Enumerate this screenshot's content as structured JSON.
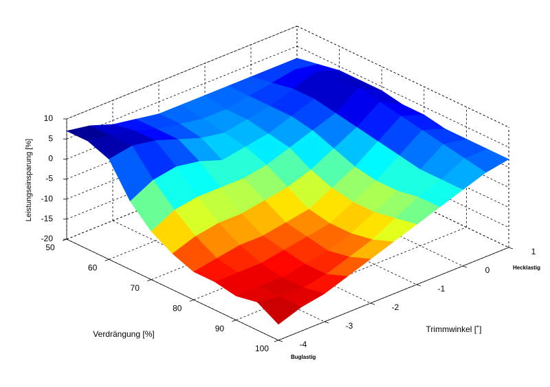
{
  "chart_data": {
    "type": "surface",
    "xlabel": "Verdrängung [%]",
    "ylabel": "Trimmwinkel [˚]",
    "zlabel": "Leistungseinsparung [%]",
    "annotations": [
      "Hecklastig",
      "Buglastig"
    ],
    "x": [
      50,
      55,
      60,
      65,
      70,
      75,
      80,
      85,
      90,
      95,
      100
    ],
    "y": [
      -4,
      -3.5,
      -3,
      -2.5,
      -2,
      -1.5,
      -1,
      -0.5,
      0,
      0.5,
      1
    ],
    "z": [
      [
        7,
        6,
        4,
        3,
        2,
        2,
        2,
        2,
        2,
        2,
        2
      ],
      [
        7,
        6,
        5,
        3,
        2,
        1,
        1,
        2,
        3,
        4,
        3
      ],
      [
        5,
        6,
        5,
        3,
        1,
        0,
        1,
        2,
        4,
        6,
        4
      ],
      [
        -3,
        0,
        1,
        0,
        -2,
        -1,
        0,
        2,
        4,
        7,
        4
      ],
      [
        -8,
        -5,
        -4,
        -4,
        -4,
        -3,
        -1,
        1,
        3,
        7,
        4
      ],
      [
        -11,
        -9,
        -8,
        -8,
        -7,
        -6,
        -4,
        -1,
        2,
        6,
        3
      ],
      [
        -13,
        -12,
        -11,
        -11,
        -10,
        -9,
        -6,
        -3,
        1,
        5,
        3
      ],
      [
        -13,
        -13,
        -13,
        -12,
        -11,
        -10,
        -7,
        -4,
        0,
        4,
        2
      ],
      [
        -14,
        -14,
        -14,
        -13,
        -12,
        -10,
        -7,
        -4,
        -1,
        3,
        2
      ],
      [
        -13,
        -14,
        -14,
        -13,
        -11,
        -9,
        -6,
        -3,
        -1,
        2,
        2
      ],
      [
        -16,
        -14,
        -13,
        -11,
        -9,
        -7,
        -5,
        -3,
        -1,
        1,
        2
      ]
    ],
    "xlim": [
      50,
      100
    ],
    "ylim": [
      -4,
      1
    ],
    "zlim": [
      -20,
      10
    ],
    "xticks": [
      50,
      60,
      70,
      80,
      90,
      100
    ],
    "yticks": [
      -4,
      -3,
      -2,
      -1,
      0,
      1
    ],
    "zticks": [
      -20,
      -15,
      -10,
      -5,
      0,
      5,
      10
    ],
    "grid": true,
    "colormap": "jet_r"
  }
}
